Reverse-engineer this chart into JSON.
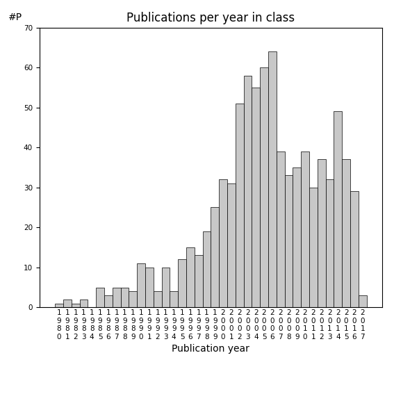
{
  "title": "Publications per year in class",
  "xlabel": "Publication year",
  "ylabel": "#P",
  "years": [
    1980,
    1981,
    1982,
    1983,
    1984,
    1985,
    1986,
    1987,
    1988,
    1989,
    1990,
    1991,
    1992,
    1993,
    1994,
    1995,
    1996,
    1997,
    1998,
    1999,
    2000,
    2001,
    2002,
    2003,
    2004,
    2005,
    2006,
    2007,
    2008,
    2009,
    2010,
    2011,
    2012,
    2013,
    2014,
    2015,
    2016,
    2017
  ],
  "values": [
    1,
    2,
    1,
    2,
    0,
    5,
    3,
    5,
    5,
    4,
    11,
    10,
    4,
    10,
    4,
    12,
    15,
    13,
    19,
    25,
    32,
    31,
    51,
    58,
    55,
    60,
    64,
    39,
    33,
    35,
    39,
    30,
    37,
    32,
    49,
    37,
    29,
    3
  ],
  "bar_color": "#c8c8c8",
  "bar_edge_color": "#000000",
  "bar_edge_width": 0.5,
  "ylim": [
    0,
    70
  ],
  "yticks": [
    0,
    10,
    20,
    30,
    40,
    50,
    60,
    70
  ],
  "figsize": [
    5.67,
    5.67
  ],
  "dpi": 100,
  "background_color": "#ffffff",
  "title_fontsize": 12,
  "axis_label_fontsize": 10,
  "tick_fontsize": 7.5
}
